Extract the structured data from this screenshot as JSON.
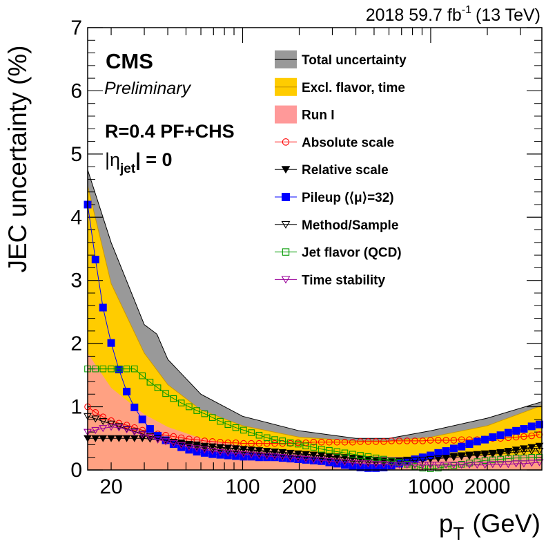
{
  "chart_data": {
    "type": "line",
    "header_left": "2018 59.7 fb",
    "header_sup": "-1",
    "header_right": "(13 TeV)",
    "cms": "CMS",
    "preliminary": "Preliminary",
    "algo": "R=0.4 PF+CHS",
    "eta_pre": "|η",
    "eta_sub": "jet",
    "eta_post": "| = 0",
    "xlabel": "p",
    "xlabel_sub": "T",
    "xlabel_unit": "(GeV)",
    "ylabel": "JEC uncertainty (%)",
    "x_scale": "log",
    "xlim": [
      15,
      3900
    ],
    "ylim": [
      0,
      7
    ],
    "y_ticks": [
      "0",
      "1",
      "2",
      "3",
      "4",
      "5",
      "6",
      "7"
    ],
    "x_tick_labels": [
      {
        "value": 20,
        "label": "20"
      },
      {
        "value": 100,
        "label": "100"
      },
      {
        "value": 200,
        "label": "200"
      },
      {
        "value": 1000,
        "label": "1000"
      },
      {
        "value": 2000,
        "label": "2000"
      }
    ],
    "legend": [
      {
        "key": "total",
        "label": "Total uncertainty",
        "color": "#999999"
      },
      {
        "key": "excl",
        "label": "Excl. flavor, time",
        "color": "#ffcc00"
      },
      {
        "key": "run1",
        "label": "Run I",
        "color": "#ff9999"
      },
      {
        "key": "absolute",
        "label": "Absolute scale",
        "color": "#ff0000"
      },
      {
        "key": "relative",
        "label": "Relative scale",
        "color": "#000000"
      },
      {
        "key": "pileup",
        "label": "Pileup (⟨μ⟩=32)",
        "color": "#0000ff"
      },
      {
        "key": "method",
        "label": "Method/Sample",
        "color": "#000000"
      },
      {
        "key": "flavor",
        "label": "Jet flavor (QCD)",
        "color": "#009900"
      },
      {
        "key": "time",
        "label": "Time stability",
        "color": "#990099"
      }
    ],
    "bands": {
      "total": {
        "x": [
          15,
          20,
          30,
          35,
          40,
          60,
          100,
          200,
          400,
          600,
          1000,
          2000,
          3900
        ],
        "y": [
          4.75,
          3.6,
          2.3,
          2.15,
          1.75,
          1.2,
          0.85,
          0.62,
          0.5,
          0.5,
          0.62,
          0.82,
          1.08
        ]
      },
      "excl": {
        "x": [
          15,
          20,
          30,
          40,
          60,
          100,
          200,
          400,
          600,
          1000,
          2000,
          3900
        ],
        "y": [
          4.5,
          2.95,
          1.85,
          1.35,
          0.95,
          0.7,
          0.52,
          0.46,
          0.46,
          0.52,
          0.7,
          1.02
        ]
      },
      "run1": {
        "x": [
          15,
          20,
          30,
          40,
          60,
          100,
          200,
          400,
          1000,
          3900
        ],
        "y": [
          1.85,
          1.3,
          0.88,
          0.68,
          0.5,
          0.38,
          0.28,
          0.22,
          0.2,
          0.25
        ]
      }
    },
    "series": [
      {
        "key": "absolute",
        "x": [
          15,
          16.5,
          18.1,
          20,
          22,
          24.2,
          26.6,
          29.3,
          32.2,
          35.4,
          39,
          42.9,
          47.2,
          51.9,
          57.1,
          62.8,
          69.1,
          76,
          83.6,
          92,
          101.2,
          111.3,
          122.4,
          134.7,
          148.2,
          163,
          179.3,
          197.2,
          216.9,
          238.6,
          262.5,
          288.7,
          317.6,
          349.4,
          384.3,
          422.7,
          465,
          511.5,
          562.7,
          619,
          680.9,
          749,
          823.9,
          906.3,
          996.9,
          1096.6,
          1206.3,
          1326.9,
          1459.6,
          1605.6,
          1766.2,
          1942.8,
          2137.1,
          2350.8,
          2585.9,
          2844.5,
          3128.9,
          3441.8,
          3786
        ],
        "y": [
          1.0,
          0.91,
          0.84,
          0.78,
          0.74,
          0.71,
          0.67,
          0.63,
          0.6,
          0.57,
          0.55,
          0.53,
          0.51,
          0.49,
          0.48,
          0.46,
          0.45,
          0.44,
          0.43,
          0.43,
          0.42,
          0.42,
          0.42,
          0.42,
          0.42,
          0.42,
          0.42,
          0.43,
          0.43,
          0.44,
          0.44,
          0.44,
          0.44,
          0.44,
          0.44,
          0.45,
          0.45,
          0.45,
          0.45,
          0.46,
          0.46,
          0.46,
          0.46,
          0.46,
          0.47,
          0.47,
          0.47,
          0.47,
          0.48,
          0.48,
          0.48,
          0.49,
          0.5,
          0.5,
          0.51,
          0.52,
          0.53,
          0.54,
          0.56
        ]
      },
      {
        "key": "relative",
        "x": [
          15,
          16.5,
          18.1,
          20,
          22,
          24.2,
          26.6,
          29.3,
          32.2,
          35.4,
          39,
          42.9,
          47.2,
          51.9,
          57.1,
          62.8,
          69.1,
          76,
          83.6,
          92,
          101.2,
          111.3,
          122.4,
          134.7,
          148.2,
          163,
          179.3,
          197.2,
          216.9,
          238.6,
          262.5,
          288.7,
          317.6,
          349.4,
          384.3,
          422.7,
          465,
          511.5,
          562.7,
          619,
          680.9,
          749,
          823.9,
          906.3,
          996.9,
          1096.6,
          1206.3,
          1326.9,
          1459.6,
          1605.6,
          1766.2,
          1942.8,
          2137.1,
          2350.8,
          2585.9,
          2844.5,
          3128.9,
          3441.8,
          3786
        ],
        "y": [
          0.5,
          0.5,
          0.5,
          0.5,
          0.5,
          0.5,
          0.5,
          0.5,
          0.49,
          0.48,
          0.46,
          0.44,
          0.43,
          0.41,
          0.4,
          0.38,
          0.37,
          0.36,
          0.35,
          0.34,
          0.33,
          0.32,
          0.31,
          0.3,
          0.29,
          0.28,
          0.27,
          0.26,
          0.25,
          0.24,
          0.23,
          0.22,
          0.21,
          0.2,
          0.19,
          0.18,
          0.17,
          0.16,
          0.15,
          0.15,
          0.15,
          0.16,
          0.17,
          0.18,
          0.19,
          0.2,
          0.21,
          0.22,
          0.23,
          0.24,
          0.25,
          0.26,
          0.27,
          0.28,
          0.3,
          0.32,
          0.34,
          0.36,
          0.38
        ]
      },
      {
        "key": "pileup",
        "x": [
          15,
          16.5,
          18.1,
          20,
          22,
          24.2,
          26.6,
          29.3,
          32.2,
          35.4,
          39,
          42.9,
          47.2,
          51.9,
          57.1,
          62.8,
          69.1,
          76,
          83.6,
          92,
          101.2,
          111.3,
          122.4,
          134.7,
          148.2,
          163,
          179.3,
          197.2,
          216.9,
          238.6,
          262.5,
          288.7,
          317.6,
          349.4,
          384.3,
          422.7,
          465,
          511.5,
          562.7,
          619,
          680.9,
          749,
          823.9,
          906.3,
          996.9,
          1096.6,
          1206.3,
          1326.9,
          1459.6,
          1605.6,
          1766.2,
          1942.8,
          2137.1,
          2350.8,
          2585.9,
          2844.5,
          3128.9,
          3441.8,
          3786
        ],
        "y": [
          4.2,
          3.33,
          2.57,
          2.01,
          1.59,
          1.24,
          0.99,
          0.8,
          0.65,
          0.54,
          0.47,
          0.41,
          0.36,
          0.32,
          0.29,
          0.27,
          0.25,
          0.24,
          0.23,
          0.22,
          0.21,
          0.21,
          0.2,
          0.2,
          0.2,
          0.19,
          0.18,
          0.17,
          0.16,
          0.15,
          0.14,
          0.12,
          0.1,
          0.08,
          0.06,
          0.04,
          0.03,
          0.03,
          0.04,
          0.07,
          0.1,
          0.13,
          0.17,
          0.2,
          0.23,
          0.27,
          0.3,
          0.34,
          0.37,
          0.41,
          0.45,
          0.48,
          0.52,
          0.55,
          0.59,
          0.62,
          0.65,
          0.69,
          0.72
        ]
      },
      {
        "key": "method",
        "x": [
          15,
          16.5,
          18.1,
          20,
          22,
          24.2,
          26.6,
          29.3,
          32.2,
          35.4,
          39,
          42.9,
          47.2,
          51.9,
          57.1,
          62.8,
          69.1,
          76,
          83.6,
          92,
          101.2,
          111.3,
          122.4,
          134.7,
          148.2,
          163,
          179.3,
          197.2,
          216.9,
          238.6,
          262.5,
          288.7,
          317.6,
          349.4,
          384.3,
          422.7,
          465,
          511.5,
          562.7,
          619,
          680.9,
          749,
          823.9,
          906.3,
          996.9,
          1096.6,
          1206.3,
          1326.9,
          1459.6,
          1605.6,
          1766.2,
          1942.8,
          2137.1,
          2350.8,
          2585.9,
          2844.5,
          3128.9,
          3441.8,
          3786
        ],
        "y": [
          0.85,
          0.81,
          0.77,
          0.73,
          0.69,
          0.65,
          0.61,
          0.57,
          0.53,
          0.5,
          0.47,
          0.44,
          0.41,
          0.39,
          0.37,
          0.35,
          0.33,
          0.31,
          0.3,
          0.29,
          0.28,
          0.27,
          0.26,
          0.25,
          0.24,
          0.23,
          0.22,
          0.21,
          0.2,
          0.19,
          0.18,
          0.17,
          0.16,
          0.15,
          0.14,
          0.13,
          0.12,
          0.12,
          0.12,
          0.12,
          0.13,
          0.14,
          0.15,
          0.16,
          0.17,
          0.18,
          0.19,
          0.2,
          0.21,
          0.22,
          0.23,
          0.24,
          0.25,
          0.26,
          0.27,
          0.28,
          0.29,
          0.3,
          0.3
        ]
      },
      {
        "key": "flavor",
        "x": [
          15,
          16.5,
          18.1,
          20,
          22,
          24.2,
          26.6,
          29.3,
          32.2,
          35.4,
          39,
          42.9,
          47.2,
          51.9,
          57.1,
          62.8,
          69.1,
          76,
          83.6,
          92,
          101.2,
          111.3,
          122.4,
          134.7,
          148.2,
          163,
          179.3,
          197.2,
          216.9,
          238.6,
          262.5,
          288.7,
          317.6,
          349.4,
          384.3,
          422.7,
          465,
          511.5,
          562.7,
          619,
          680.9,
          749,
          823.9,
          906.3,
          996.9,
          1096.6,
          1206.3,
          1326.9,
          1459.6,
          1605.6,
          1766.2,
          1942.8,
          2137.1,
          2350.8,
          2585.9,
          2844.5,
          3128.9,
          3441.8,
          3786
        ],
        "y": [
          1.6,
          1.6,
          1.6,
          1.6,
          1.6,
          1.6,
          1.6,
          1.49,
          1.39,
          1.3,
          1.21,
          1.13,
          1.06,
          1.0,
          0.94,
          0.89,
          0.83,
          0.77,
          0.72,
          0.67,
          0.63,
          0.59,
          0.55,
          0.51,
          0.48,
          0.46,
          0.43,
          0.41,
          0.38,
          0.36,
          0.33,
          0.31,
          0.29,
          0.27,
          0.25,
          0.23,
          0.21,
          0.19,
          0.17,
          0.14,
          0.12,
          0.09,
          0.06,
          0.03,
          0.02,
          0.03,
          0.05,
          0.07,
          0.09,
          0.11,
          0.13,
          0.15,
          0.16,
          0.17,
          0.18,
          0.19,
          0.19,
          0.2,
          0.2
        ]
      },
      {
        "key": "time",
        "x": [
          15,
          16.5,
          18.1,
          20,
          22,
          24.2,
          26.6,
          29.3,
          32.2,
          35.4,
          39,
          42.9,
          47.2,
          51.9,
          57.1,
          62.8,
          69.1,
          76,
          83.6,
          92,
          101.2,
          111.3,
          122.4,
          134.7,
          148.2,
          163,
          179.3,
          197.2,
          216.9,
          238.6,
          262.5,
          288.7,
          317.6,
          349.4,
          384.3,
          422.7,
          465,
          511.5,
          562.7,
          619,
          680.9,
          749,
          823.9,
          906.3,
          996.9,
          1096.6,
          1206.3,
          1326.9,
          1459.6,
          1605.6,
          1766.2,
          1942.8,
          2137.1,
          2350.8,
          2585.9,
          2844.5,
          3128.9,
          3441.8,
          3786
        ],
        "y": [
          0.6,
          0.63,
          0.66,
          0.68,
          0.67,
          0.64,
          0.6,
          0.56,
          0.52,
          0.48,
          0.45,
          0.42,
          0.39,
          0.36,
          0.34,
          0.32,
          0.3,
          0.28,
          0.27,
          0.26,
          0.25,
          0.24,
          0.23,
          0.22,
          0.21,
          0.2,
          0.19,
          0.18,
          0.17,
          0.16,
          0.15,
          0.14,
          0.13,
          0.12,
          0.11,
          0.1,
          0.1,
          0.09,
          0.09,
          0.08,
          0.08,
          0.08,
          0.08,
          0.08,
          0.08,
          0.08,
          0.08,
          0.08,
          0.08,
          0.08,
          0.08,
          0.08,
          0.09,
          0.09,
          0.09,
          0.1,
          0.1,
          0.11,
          0.12
        ]
      }
    ]
  }
}
